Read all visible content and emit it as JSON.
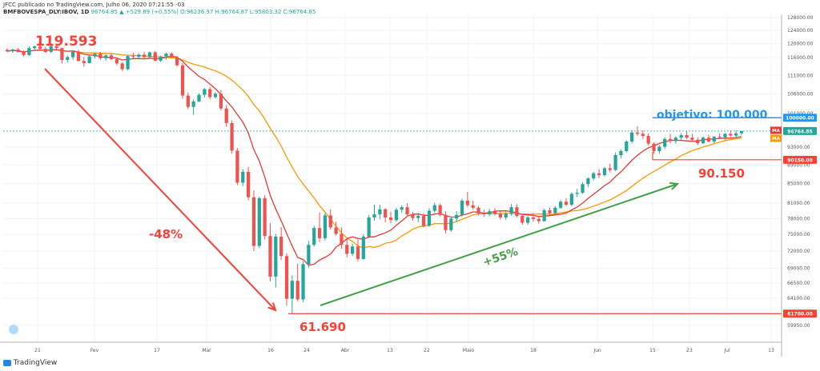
{
  "header": {
    "line1": "JFCC publicado no TradingView.com, Julho 06, 2020 07:21:55 -03",
    "symbol": "BMFBOVESPA_DLY:IBOV, 1D",
    "price": "96764.85",
    "change": "▲ +529.89 (+0.55%)",
    "ohlc": "O:96236.97 H:96764.87 L:95803.32 C:96764.85"
  },
  "footer": {
    "brand": "TradingView"
  },
  "badges": {
    "ma": "MA"
  },
  "annotations": {
    "high": "119.593",
    "low": "61.690",
    "drop": "-48%",
    "rise": "+55%",
    "objective": "objetivo: 100.000",
    "support": "90.150"
  },
  "colors": {
    "up": "#26a69a",
    "down": "#ef5350",
    "ma_fast": "#e53935",
    "ma_slow": "#ff9800",
    "annotation_red": "#f44336",
    "annotation_green": "#43a047",
    "objective_blue": "#2196f3",
    "last_price": "#26a69a"
  },
  "chart_data": {
    "type": "candlestick",
    "x_ticks": [
      "21",
      "Fev",
      "17",
      "Mar",
      "16",
      "24",
      "Abr",
      "13",
      "22",
      "Maio",
      "18",
      "Jun",
      "15",
      "23",
      "Jul",
      "13"
    ],
    "y_ticks": [
      "128000.00",
      "124000.00",
      "120000.00",
      "116000.00",
      "111000.00",
      "106000.00",
      "101000.00",
      "93000.00",
      "89000.00",
      "85000.00",
      "81000.00",
      "78000.00",
      "75000.00",
      "72000.00",
      "69000.00",
      "66500.00",
      "64100.00",
      "59950.00"
    ],
    "scale": "log",
    "y_range": [
      57500,
      129000
    ],
    "price_labels": [
      {
        "text": "100000.00",
        "value": 100000,
        "color": "#2196f3"
      },
      {
        "text": "96764.85",
        "value": 96764.85,
        "color": "#26a69a"
      },
      {
        "text": "90150.00",
        "value": 90150,
        "color": "#f44336"
      },
      {
        "text": "61700.00",
        "value": 61700,
        "color": "#f44336"
      }
    ],
    "candles": [
      [
        118200,
        118700,
        117500,
        117800
      ],
      [
        117800,
        118600,
        117300,
        118300
      ],
      [
        118300,
        118800,
        117400,
        117600
      ],
      [
        117600,
        118000,
        116300,
        116700
      ],
      [
        116700,
        119200,
        116400,
        118700
      ],
      [
        118700,
        119500,
        118200,
        119200
      ],
      [
        119200,
        119600,
        118300,
        118500
      ],
      [
        118500,
        119000,
        117300,
        117600
      ],
      [
        117600,
        119500,
        117300,
        119300
      ],
      [
        119300,
        119593,
        118400,
        118700
      ],
      [
        118700,
        118900,
        114300,
        115300
      ],
      [
        115300,
        116600,
        114600,
        116100
      ],
      [
        116100,
        117900,
        115300,
        117600
      ],
      [
        117600,
        118200,
        114800,
        115000
      ],
      [
        115000,
        116100,
        113400,
        114400
      ],
      [
        114400,
        116600,
        114300,
        116300
      ],
      [
        116300,
        117400,
        115800,
        117100
      ],
      [
        117100,
        117600,
        115300,
        115800
      ],
      [
        115800,
        116900,
        115100,
        116600
      ],
      [
        116600,
        117300,
        115200,
        115500
      ],
      [
        115500,
        116100,
        113800,
        114300
      ],
      [
        114300,
        114700,
        112200,
        112700
      ],
      [
        112700,
        116700,
        112400,
        116400
      ],
      [
        116400,
        117400,
        115600,
        116200
      ],
      [
        116200,
        117200,
        115400,
        116800
      ],
      [
        116800,
        117600,
        115800,
        116100
      ],
      [
        116100,
        117700,
        116000,
        117500
      ],
      [
        117500,
        117900,
        114900,
        115100
      ],
      [
        115100,
        116500,
        114700,
        116300
      ],
      [
        116300,
        117400,
        115400,
        117100
      ],
      [
        117100,
        117500,
        115800,
        116000
      ],
      [
        116000,
        116500,
        113400,
        113800
      ],
      [
        113800,
        114400,
        104800,
        105600
      ],
      [
        105600,
        106400,
        102100,
        102700
      ],
      [
        102700,
        104600,
        100700,
        104100
      ],
      [
        104100,
        106200,
        103900,
        105800
      ],
      [
        105800,
        107600,
        105100,
        107300
      ],
      [
        107300,
        107900,
        104600,
        105200
      ],
      [
        105200,
        106500,
        104900,
        106100
      ],
      [
        106100,
        107100,
        101800,
        102300
      ],
      [
        102300,
        103200,
        97800,
        98700
      ],
      [
        98700,
        99300,
        91500,
        92200
      ],
      [
        92200,
        92800,
        84700,
        85200
      ],
      [
        85200,
        88100,
        84500,
        87500
      ],
      [
        87500,
        88600,
        81600,
        82200
      ],
      [
        82200,
        83600,
        72000,
        72900
      ],
      [
        72900,
        82300,
        72500,
        82000
      ],
      [
        82000,
        82600,
        74100,
        74700
      ],
      [
        74700,
        77100,
        66800,
        67600
      ],
      [
        67600,
        75100,
        65800,
        74600
      ],
      [
        74600,
        76400,
        70400,
        71100
      ],
      [
        71100,
        71600,
        62900,
        64000
      ],
      [
        64000,
        67800,
        61690,
        66900
      ],
      [
        66900,
        69800,
        63600,
        63900
      ],
      [
        63900,
        70200,
        63500,
        69700
      ],
      [
        69700,
        73800,
        69100,
        73100
      ],
      [
        73100,
        76600,
        72800,
        76200
      ],
      [
        76200,
        79200,
        73600,
        74300
      ],
      [
        74300,
        79000,
        73900,
        78600
      ],
      [
        78600,
        79800,
        75900,
        76300
      ],
      [
        76300,
        77400,
        74800,
        75100
      ],
      [
        75100,
        76300,
        72400,
        73100
      ],
      [
        73100,
        74200,
        70900,
        71500
      ],
      [
        71500,
        73300,
        71100,
        72800
      ],
      [
        72800,
        74100,
        70200,
        70600
      ],
      [
        70600,
        75000,
        70400,
        74600
      ],
      [
        74600,
        78700,
        74300,
        78200
      ],
      [
        78200,
        80700,
        77600,
        78800
      ],
      [
        78800,
        80700,
        77900,
        79800
      ],
      [
        79800,
        80000,
        77300,
        78200
      ],
      [
        78200,
        79300,
        77100,
        77700
      ],
      [
        77700,
        80100,
        77400,
        79700
      ],
      [
        79700,
        80600,
        79100,
        80200
      ],
      [
        80200,
        81000,
        78300,
        78800
      ],
      [
        78800,
        79300,
        77600,
        78100
      ],
      [
        78100,
        79100,
        77300,
        78500
      ],
      [
        78500,
        79000,
        76300,
        76600
      ],
      [
        76600,
        80000,
        76400,
        79500
      ],
      [
        79500,
        81100,
        79100,
        80600
      ],
      [
        80600,
        80900,
        78400,
        78700
      ],
      [
        78700,
        79400,
        75200,
        75800
      ],
      [
        75800,
        78300,
        75500,
        78000
      ],
      [
        78000,
        79400,
        77300,
        78700
      ],
      [
        78700,
        81900,
        78400,
        81500
      ],
      [
        81500,
        83300,
        80200,
        80600
      ],
      [
        80600,
        81500,
        79700,
        80100
      ],
      [
        80100,
        80400,
        78600,
        79000
      ],
      [
        79000,
        79700,
        78300,
        78800
      ],
      [
        78800,
        79900,
        78400,
        79400
      ],
      [
        79400,
        80000,
        78600,
        78900
      ],
      [
        78900,
        79500,
        77800,
        78200
      ],
      [
        78200,
        79300,
        77700,
        78900
      ],
      [
        78900,
        80800,
        78500,
        80200
      ],
      [
        80200,
        80800,
        78200,
        78500
      ],
      [
        78500,
        78900,
        76800,
        77200
      ],
      [
        77200,
        78600,
        76800,
        78200
      ],
      [
        78200,
        79100,
        77400,
        77900
      ],
      [
        77900,
        78500,
        77000,
        77500
      ],
      [
        77500,
        79900,
        77400,
        79600
      ],
      [
        79600,
        80100,
        78600,
        79000
      ],
      [
        79000,
        80400,
        78700,
        80100
      ],
      [
        80100,
        81600,
        79900,
        81300
      ],
      [
        81300,
        82000,
        80400,
        80700
      ],
      [
        80700,
        83200,
        80400,
        82900
      ],
      [
        82900,
        83900,
        82200,
        83100
      ],
      [
        83100,
        85300,
        82900,
        84900
      ],
      [
        84900,
        86300,
        84300,
        86100
      ],
      [
        86100,
        87500,
        85700,
        87200
      ],
      [
        87200,
        88100,
        86200,
        86800
      ],
      [
        86800,
        88600,
        86500,
        88300
      ],
      [
        88300,
        89300,
        87400,
        87900
      ],
      [
        87900,
        91800,
        87700,
        91200
      ],
      [
        91200,
        92500,
        90500,
        92100
      ],
      [
        92100,
        94600,
        91800,
        94300
      ],
      [
        94300,
        96900,
        93900,
        96400
      ],
      [
        96400,
        97900,
        95600,
        96100
      ],
      [
        96100,
        96900,
        94900,
        95600
      ],
      [
        95600,
        96200,
        93300,
        93800
      ],
      [
        93800,
        94100,
        91500,
        92100
      ],
      [
        92100,
        93500,
        91500,
        93100
      ],
      [
        93100,
        95300,
        92600,
        94900
      ],
      [
        94900,
        96100,
        93900,
        94400
      ],
      [
        94400,
        95500,
        93800,
        95200
      ],
      [
        95200,
        96300,
        94600,
        95800
      ],
      [
        95800,
        96700,
        94900,
        95200
      ],
      [
        95200,
        96100,
        94400,
        94700
      ],
      [
        94700,
        95300,
        93500,
        93900
      ],
      [
        93900,
        95500,
        93700,
        95200
      ],
      [
        95200,
        95900,
        94100,
        94300
      ],
      [
        94300,
        95600,
        93900,
        95400
      ],
      [
        95400,
        96200,
        94800,
        95300
      ],
      [
        95300,
        96300,
        94700,
        96100
      ],
      [
        96100,
        96900,
        95300,
        95700
      ],
      [
        95700,
        96900,
        95200,
        96237
      ],
      [
        96237,
        96765,
        95803,
        96765
      ]
    ],
    "ma_fast_period": 9,
    "ma_slow_period": 21
  }
}
